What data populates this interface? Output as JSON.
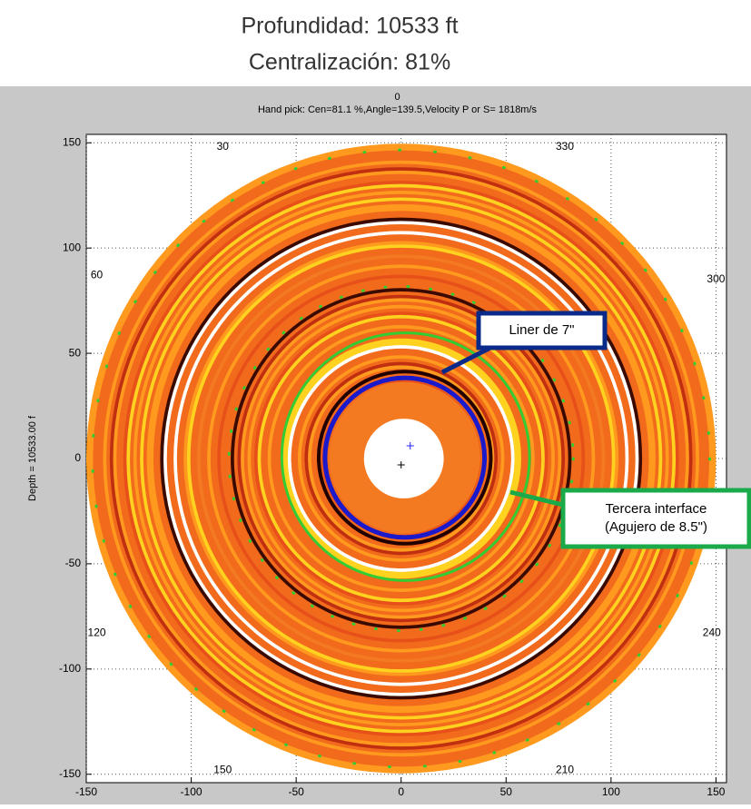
{
  "chart_data": {
    "type": "polar-image",
    "title": "Profundidad: 10533 ft",
    "subtitle": "Centralización: 81%",
    "axes_title": [
      "0",
      "Hand pick: Cen=81.1 %,Angle=139.5,Velocity P or S=  1818m/s"
    ],
    "ylabel": "Depth = 10533.00 f",
    "xlim": [
      -150,
      155
    ],
    "ylim": [
      -154,
      154
    ],
    "xticks": [
      -150,
      -100,
      -50,
      0,
      50,
      100,
      150
    ],
    "yticks": [
      -150,
      -100,
      -50,
      0,
      50,
      100,
      150
    ],
    "grid": true,
    "angle_labels": [
      "30",
      "330",
      "60",
      "300",
      "120",
      "240",
      "150",
      "210"
    ],
    "annotations": [
      {
        "text": [
          "Liner de 7\""
        ],
        "color": "#0a2a8a"
      },
      {
        "text": [
          "Tercera interface",
          "(Agujero de 8.5\")"
        ],
        "color": "#1aaa4a"
      }
    ]
  }
}
